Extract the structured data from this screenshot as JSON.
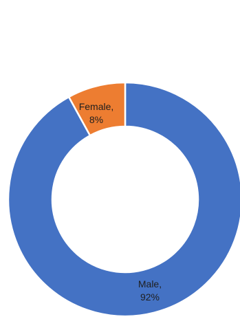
{
  "chart_data": {
    "type": "pie",
    "variant": "donut",
    "title": "",
    "slices": [
      {
        "name": "Male",
        "value": 92,
        "label_name": "Male,",
        "label_pct": "92%",
        "color": "#4472C4"
      },
      {
        "name": "Female",
        "value": 8,
        "label_name": "Female,",
        "label_pct": "8%",
        "color": "#ED7D31"
      }
    ],
    "legend": "none",
    "data_labels": "category and percentage"
  }
}
